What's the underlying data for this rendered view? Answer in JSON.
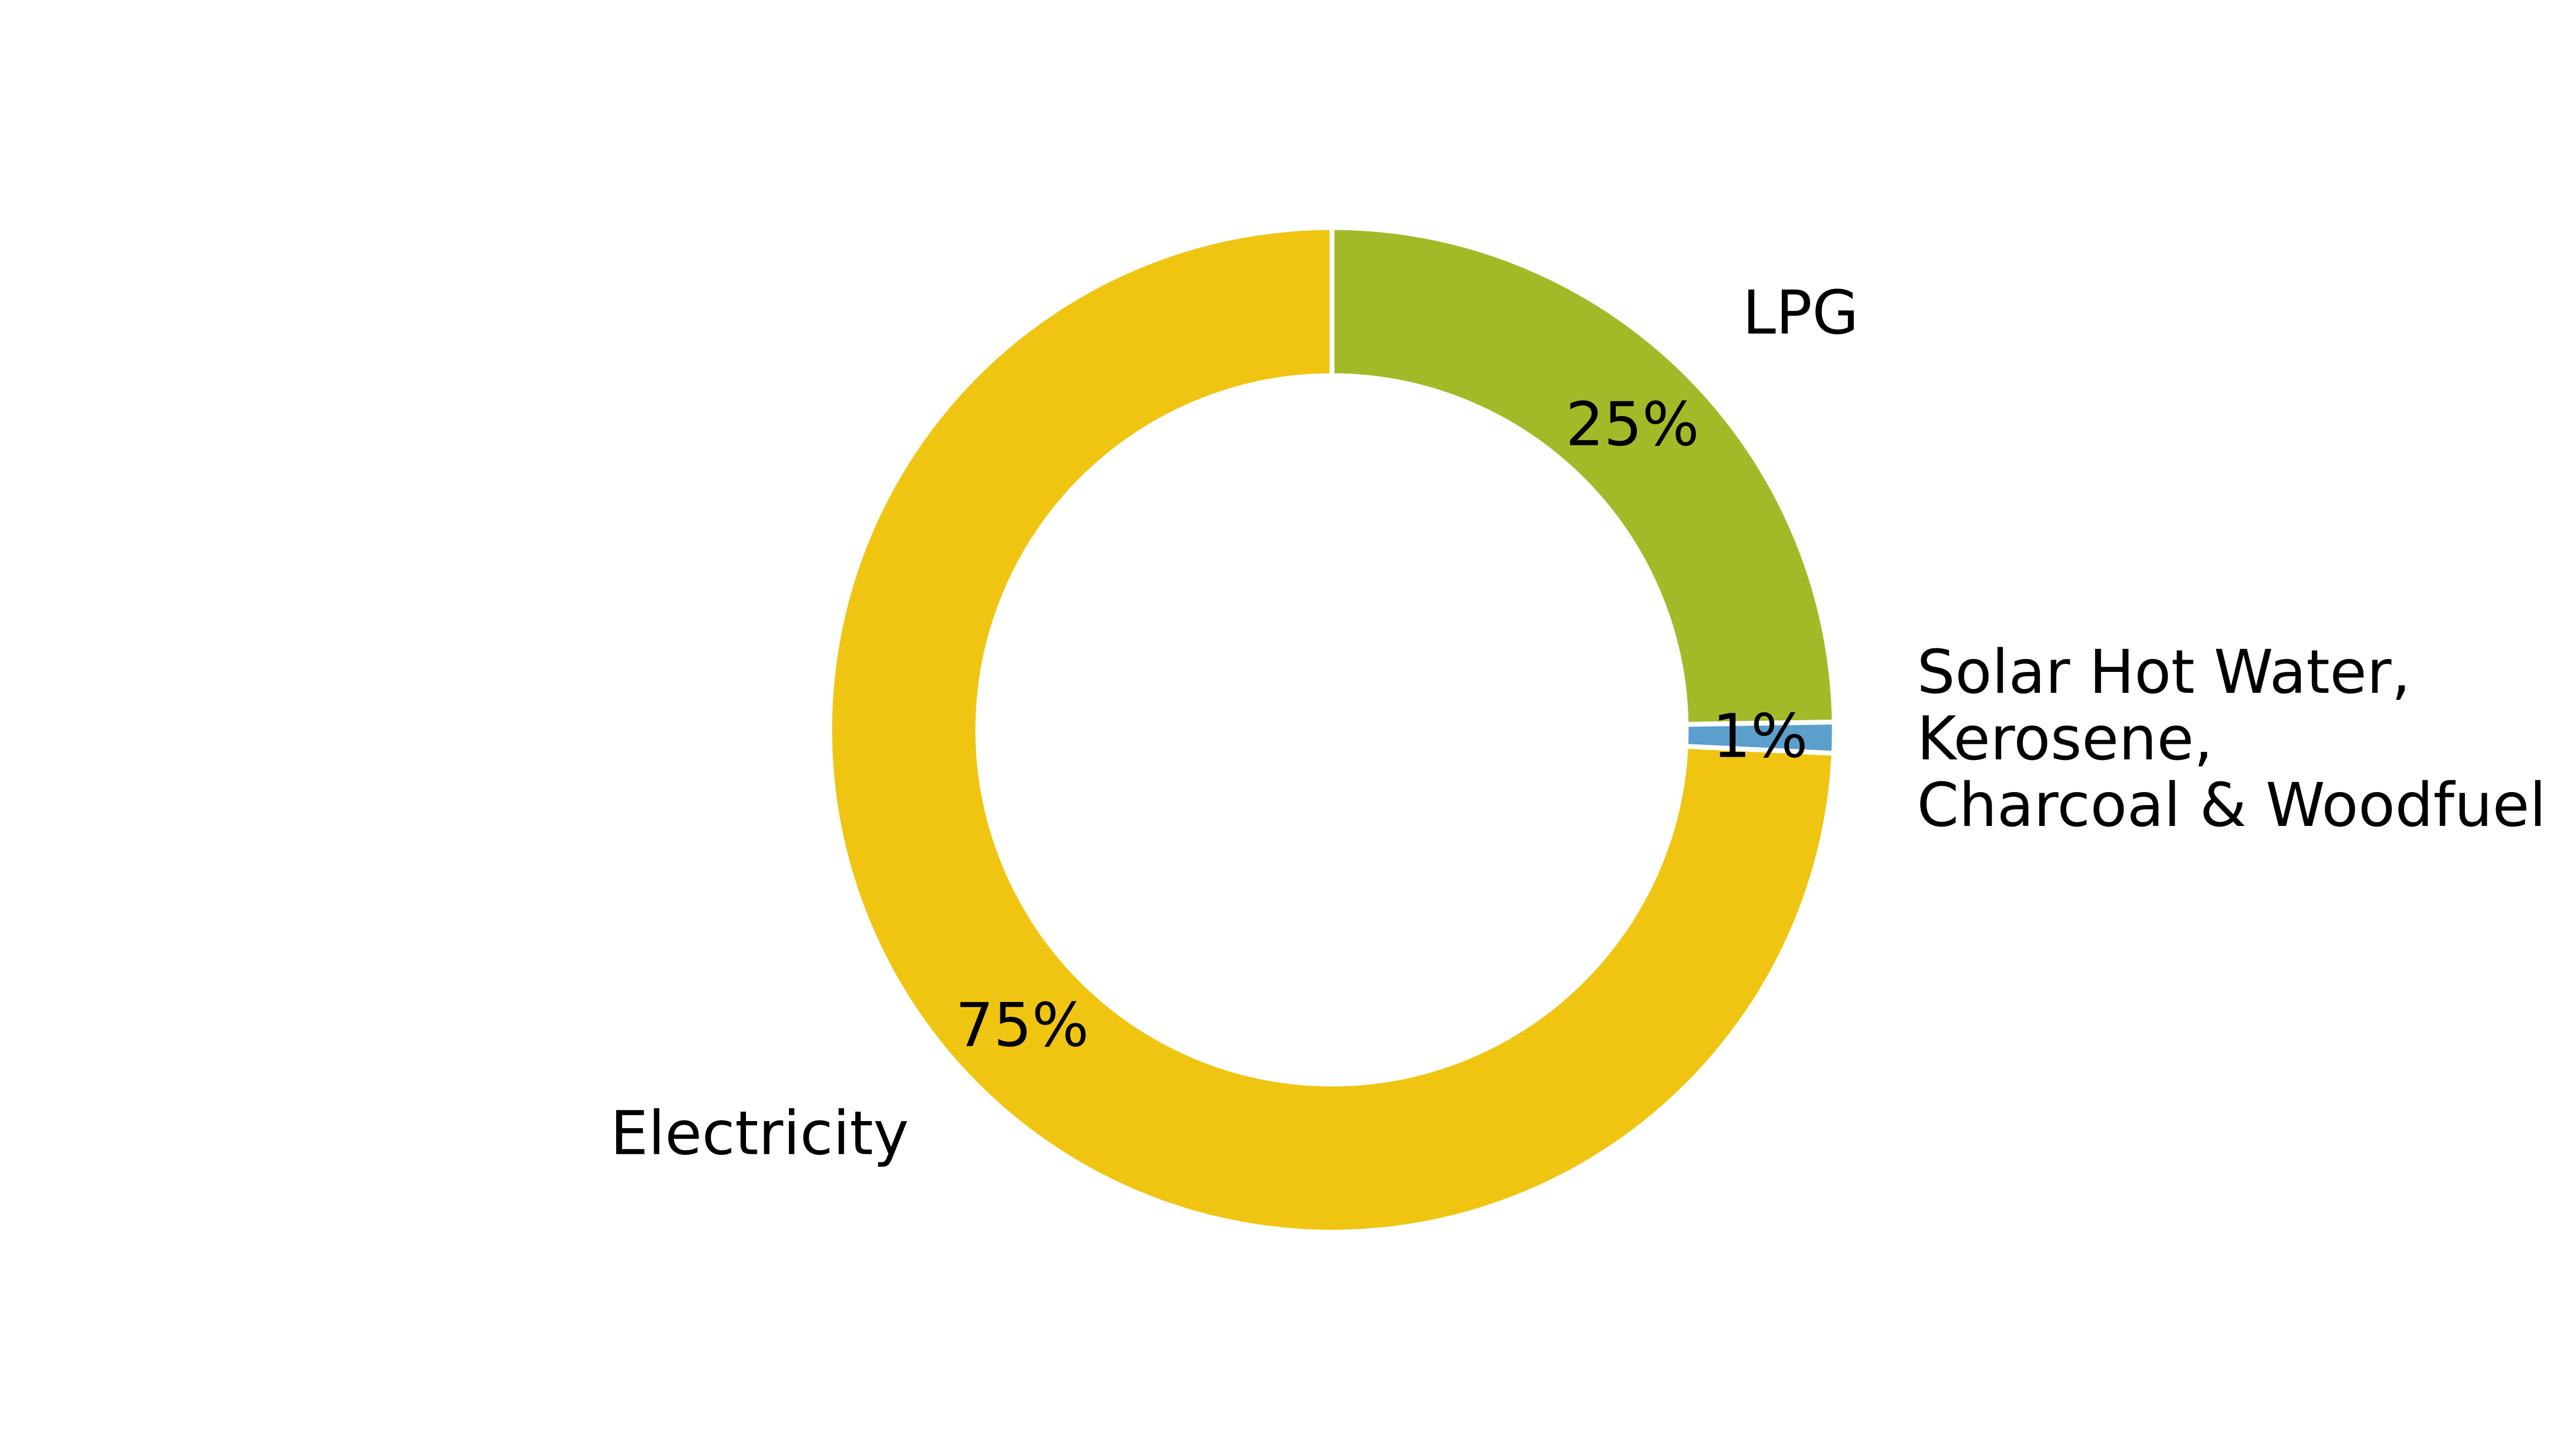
{
  "chart_data": {
    "type": "pie",
    "donut": true,
    "slices": [
      {
        "label_lines": [
          "LPG"
        ],
        "value": 25,
        "value_label": "25%",
        "color": "#a4b928"
      },
      {
        "label_lines": [
          "Solar Hot Water,",
          "Kerosene,",
          "Charcoal & Woodfuel"
        ],
        "value": 1,
        "value_label": "1%",
        "color": "#5b9fcd"
      },
      {
        "label_lines": [
          "Electricity"
        ],
        "value": 75,
        "value_label": "75%",
        "color": "#f0c511"
      }
    ],
    "start_angle_degrees": 0,
    "direction": "clockwise",
    "legend": "none"
  }
}
